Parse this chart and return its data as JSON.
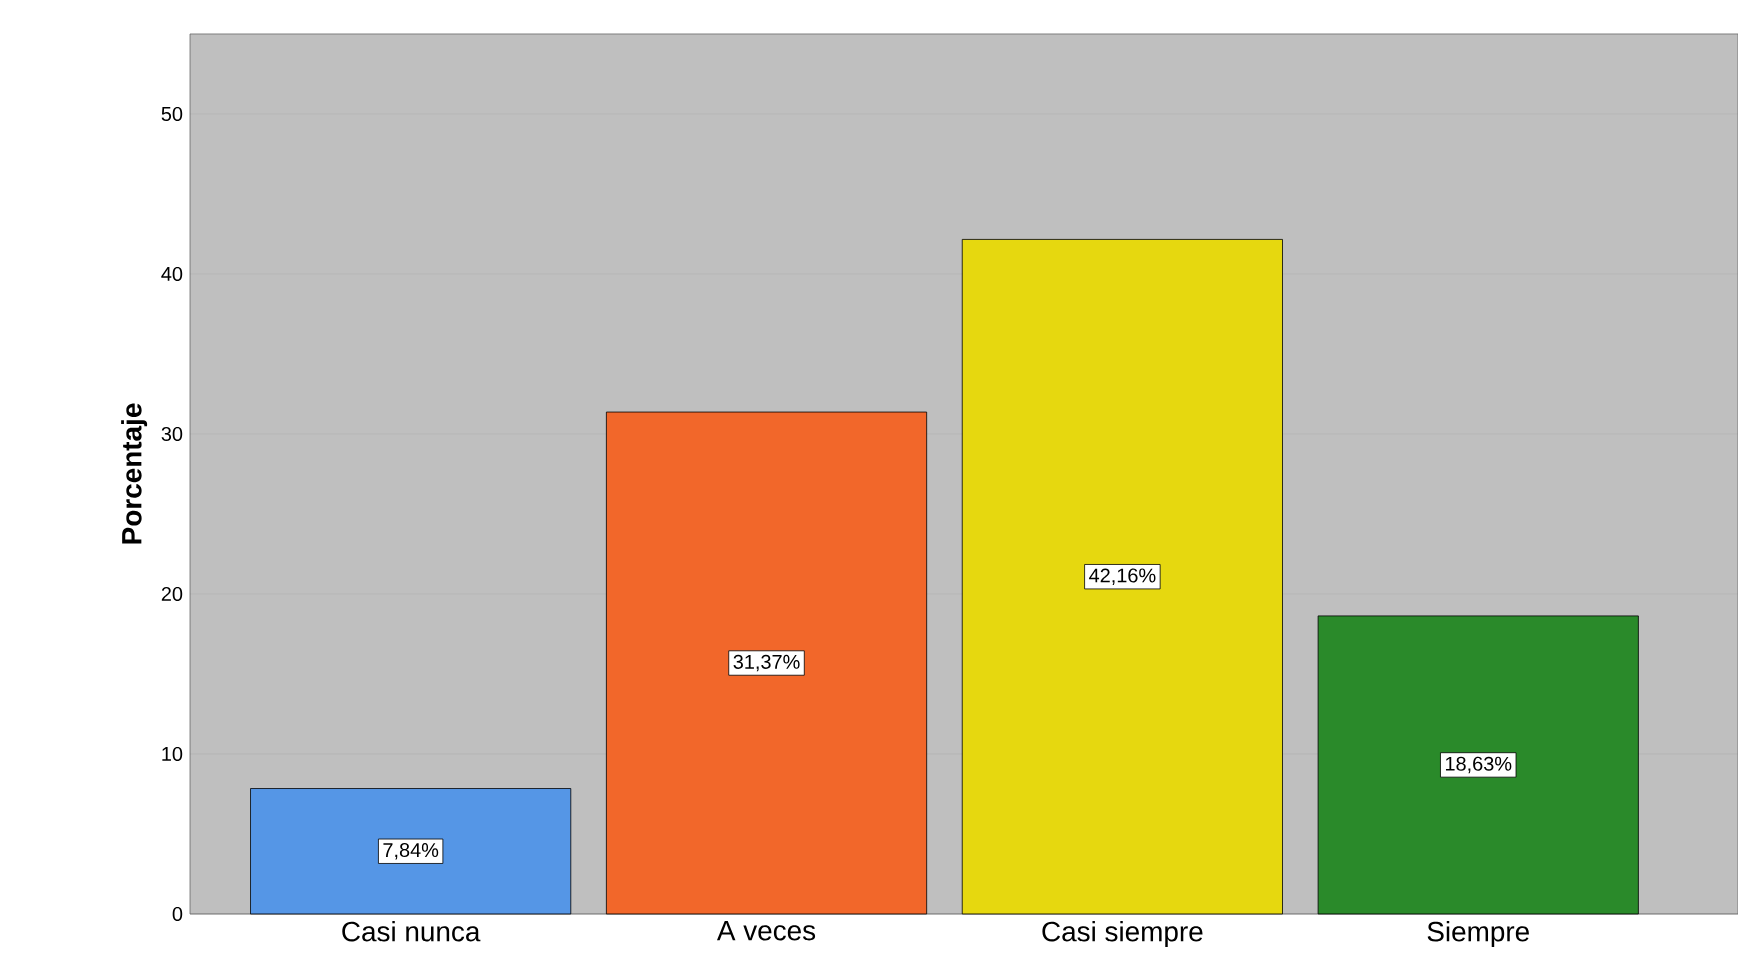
{
  "chart_data": {
    "type": "bar",
    "ylabel": "Porcentaje",
    "categories": [
      "Casi nunca",
      "A veces",
      "Casi siempre",
      "Siempre"
    ],
    "values": [
      7.84,
      31.37,
      42.16,
      18.63
    ],
    "value_labels": [
      "7,84%",
      "31,37%",
      "42,16%",
      "18,63%"
    ],
    "colors": [
      "#5596e6",
      "#f2672a",
      "#e6d80f",
      "#2a8a2a"
    ],
    "ylim": [
      0,
      55
    ],
    "yticks": [
      0,
      10,
      20,
      30,
      40,
      50
    ],
    "grid": "y"
  }
}
